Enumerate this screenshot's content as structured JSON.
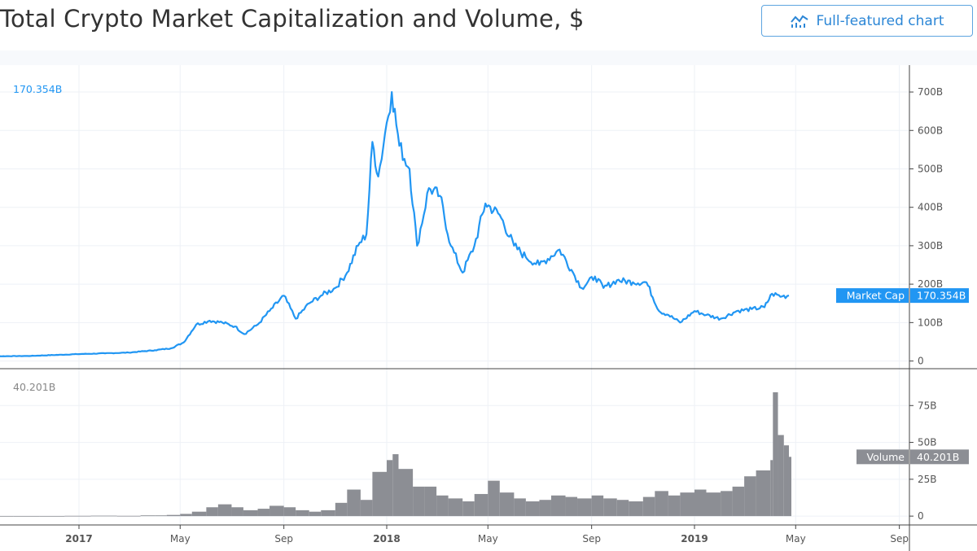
{
  "header": {
    "title": "Total Crypto Market Capitalization and Volume, $",
    "full_chart_label": "Full-featured chart",
    "full_chart_icon": "chart-line-bars-icon"
  },
  "colors": {
    "market_cap": "#2196f3",
    "volume": "#8c8e94",
    "grid": "#eef1f6",
    "axis": "#444444"
  },
  "chart_data": [
    {
      "type": "line",
      "pane": "market-cap",
      "legend_value": "170.354B",
      "label": {
        "name": "Market Cap",
        "value": "170.354B"
      },
      "y_ticks": [
        "0",
        "100B",
        "200B",
        "300B",
        "400B",
        "500B",
        "600B",
        "700B"
      ],
      "y_tick_values": [
        0,
        100,
        200,
        300,
        400,
        500,
        600,
        700
      ],
      "ylim": [
        -20,
        770
      ],
      "unit": "B",
      "grid": true,
      "series": [
        {
          "x": [
            "2016-09-01",
            "2016-11-01",
            "2017-01-01",
            "2017-02-01",
            "2017-03-01",
            "2017-04-01",
            "2017-04-20",
            "2017-05-05",
            "2017-05-20",
            "2017-06-05",
            "2017-06-20",
            "2017-07-05",
            "2017-07-16",
            "2017-08-01",
            "2017-08-15",
            "2017-09-01",
            "2017-09-15",
            "2017-10-01",
            "2017-10-15",
            "2017-11-01",
            "2017-11-15",
            "2017-11-28",
            "2017-12-08",
            "2017-12-15",
            "2017-12-22",
            "2018-01-01",
            "2018-01-07",
            "2018-01-16",
            "2018-01-28",
            "2018-02-06",
            "2018-02-20",
            "2018-03-05",
            "2018-03-18",
            "2018-04-01",
            "2018-04-15",
            "2018-04-28",
            "2018-05-15",
            "2018-06-01",
            "2018-06-15",
            "2018-07-01",
            "2018-07-25",
            "2018-08-10",
            "2018-08-20",
            "2018-09-05",
            "2018-09-15",
            "2018-10-01",
            "2018-10-20",
            "2018-11-05",
            "2018-11-20",
            "2018-12-01",
            "2018-12-15",
            "2019-01-01",
            "2019-01-15",
            "2019-02-01",
            "2019-02-20",
            "2019-03-10",
            "2019-03-25",
            "2019-04-03",
            "2019-04-15",
            "2019-04-23"
          ],
          "values": [
            12,
            13,
            18,
            20,
            22,
            28,
            33,
            48,
            95,
            105,
            100,
            90,
            70,
            95,
            130,
            170,
            110,
            150,
            170,
            190,
            230,
            300,
            330,
            570,
            480,
            620,
            700,
            560,
            500,
            300,
            450,
            430,
            300,
            230,
            300,
            410,
            380,
            300,
            270,
            250,
            290,
            230,
            190,
            220,
            190,
            210,
            205,
            205,
            130,
            120,
            100,
            130,
            120,
            110,
            130,
            135,
            140,
            175,
            168,
            170.354
          ]
        }
      ]
    },
    {
      "type": "bar",
      "pane": "volume",
      "legend_value": "40.201B",
      "label": {
        "name": "Volume",
        "value": "40.201B"
      },
      "y_ticks": [
        "0",
        "25B",
        "50B",
        "75B"
      ],
      "y_tick_values": [
        0,
        25,
        50,
        75
      ],
      "ylim": [
        -6,
        100
      ],
      "unit": "B",
      "grid": true,
      "series": [
        {
          "x": [
            "2016-09-15",
            "2016-10-15",
            "2016-11-15",
            "2016-12-15",
            "2017-01-15",
            "2017-02-15",
            "2017-03-15",
            "2017-04-01",
            "2017-04-15",
            "2017-05-01",
            "2017-05-15",
            "2017-06-01",
            "2017-06-15",
            "2017-07-01",
            "2017-07-15",
            "2017-08-01",
            "2017-08-15",
            "2017-09-01",
            "2017-09-15",
            "2017-10-01",
            "2017-10-15",
            "2017-11-01",
            "2017-11-15",
            "2017-12-01",
            "2017-12-15",
            "2018-01-01",
            "2018-01-08",
            "2018-01-15",
            "2018-02-01",
            "2018-02-15",
            "2018-03-01",
            "2018-03-15",
            "2018-04-01",
            "2018-04-15",
            "2018-05-01",
            "2018-05-15",
            "2018-06-01",
            "2018-06-15",
            "2018-07-01",
            "2018-07-15",
            "2018-08-01",
            "2018-08-15",
            "2018-09-01",
            "2018-09-15",
            "2018-10-01",
            "2018-10-15",
            "2018-11-01",
            "2018-11-15",
            "2018-12-01",
            "2018-12-15",
            "2019-01-01",
            "2019-01-15",
            "2019-02-01",
            "2019-02-15",
            "2019-03-01",
            "2019-03-15",
            "2019-04-01",
            "2019-04-04",
            "2019-04-10",
            "2019-04-17",
            "2019-04-23"
          ],
          "values": [
            0.1,
            0.1,
            0.1,
            0.2,
            0.3,
            0.2,
            0.5,
            0.5,
            0.8,
            1.5,
            3,
            6,
            8,
            6,
            4,
            5,
            7,
            6,
            4,
            3,
            4,
            9,
            18,
            11,
            30,
            38,
            42,
            32,
            20,
            20,
            14,
            12,
            10,
            15,
            24,
            16,
            12,
            10,
            11,
            14,
            13,
            12,
            14,
            12,
            11,
            10,
            13,
            17,
            14,
            16,
            18,
            16,
            17,
            20,
            27,
            31,
            38,
            84,
            55,
            48,
            40.201
          ]
        }
      ]
    }
  ],
  "x_axis": {
    "ticks": [
      "2017",
      "May",
      "Sep",
      "2018",
      "May",
      "Sep",
      "2019",
      "May",
      "Sep"
    ],
    "tick_dates": [
      "2017-01-01",
      "2017-05-01",
      "2017-09-01",
      "2018-01-01",
      "2018-05-01",
      "2018-09-01",
      "2019-01-01",
      "2019-05-01",
      "2019-09-01"
    ],
    "bold": [
      "2017",
      "2018",
      "2019"
    ]
  }
}
